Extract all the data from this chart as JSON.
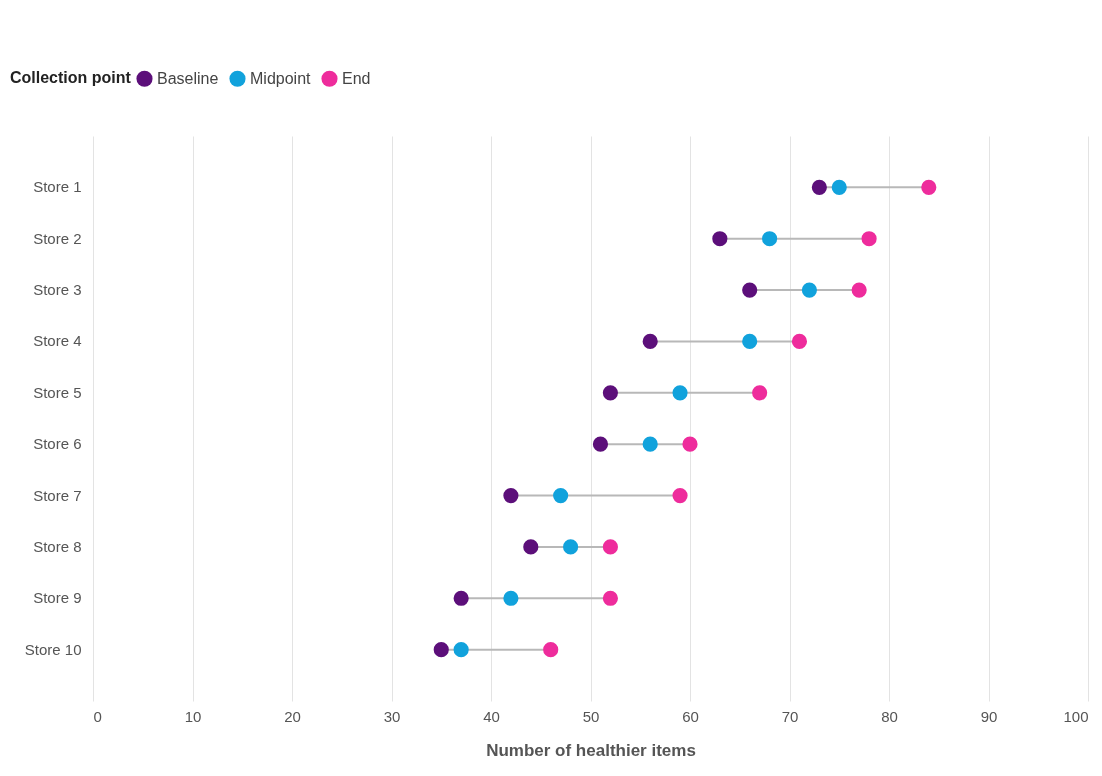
{
  "chart_data": {
    "type": "scatter",
    "orientation": "horizontal",
    "xlabel": "Number of healthier items",
    "legend_title": "Collection point",
    "legend": "top left",
    "grid": "x",
    "marker": "circle",
    "categories": [
      "Store 1",
      "Store 2",
      "Store 3",
      "Store 4",
      "Store 5",
      "Store 6",
      "Store 7",
      "Store 8",
      "Store 9",
      "Store 10"
    ],
    "xlim": [
      0,
      100
    ],
    "xticks": [
      0,
      10,
      20,
      30,
      40,
      50,
      60,
      70,
      80,
      90,
      100
    ],
    "series": [
      {
        "name": "Baseline",
        "color": "#5c0f7a",
        "values": [
          73,
          63,
          66,
          56,
          52,
          51,
          42,
          44,
          37,
          35
        ]
      },
      {
        "name": "Midpoint",
        "color": "#11a2dc",
        "values": [
          75,
          68,
          72,
          66,
          59,
          56,
          47,
          48,
          42,
          37
        ]
      },
      {
        "name": "End",
        "color": "#ee2c9c",
        "values": [
          84,
          78,
          77,
          71,
          67,
          60,
          59,
          52,
          52,
          46
        ]
      }
    ]
  }
}
